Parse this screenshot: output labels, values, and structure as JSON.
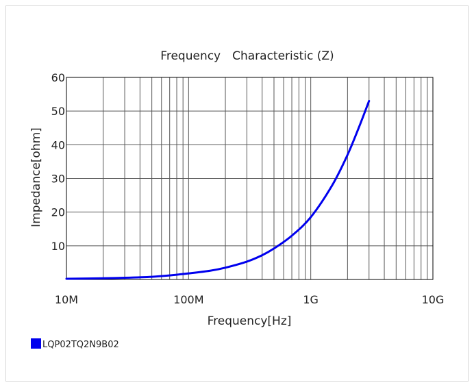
{
  "chart_data": {
    "type": "line",
    "title": "Frequency　Characteristic (Z)",
    "xlabel": "Frequency[Hz]",
    "ylabel": "Impedance[ohm]",
    "x_scale": "log",
    "xlim": [
      10000000,
      10000000000
    ],
    "ylim": [
      0,
      60
    ],
    "x_tick_values": [
      10000000,
      100000000,
      1000000000,
      10000000000
    ],
    "x_tick_labels": [
      "10M",
      "100M",
      "1G",
      "10G"
    ],
    "y_tick_values": [
      10,
      20,
      30,
      40,
      50,
      60
    ],
    "y_tick_labels": [
      "10",
      "20",
      "30",
      "40",
      "50",
      "60"
    ],
    "grid": true,
    "legend_position": "bottom-left",
    "series": [
      {
        "name": "LQP02TQ2N9B02",
        "color": "#0000ee",
        "x": [
          10000000,
          20000000,
          30000000,
          50000000,
          70000000,
          100000000,
          150000000,
          200000000,
          300000000,
          400000000,
          500000000,
          700000000,
          1000000000,
          1500000000,
          2000000000,
          2500000000,
          3000000000
        ],
        "y": [
          0.2,
          0.35,
          0.5,
          0.8,
          1.2,
          1.8,
          2.6,
          3.5,
          5.3,
          7.2,
          9.2,
          13.0,
          18.5,
          28.0,
          37.0,
          45.5,
          53.0
        ]
      }
    ]
  }
}
